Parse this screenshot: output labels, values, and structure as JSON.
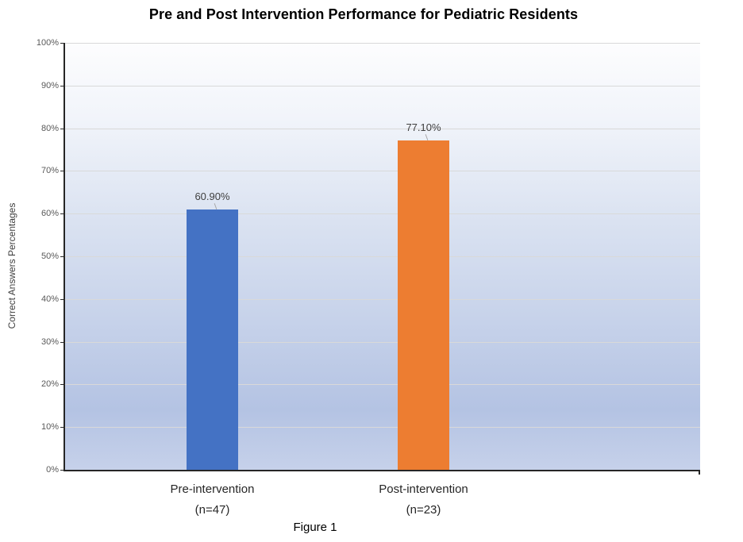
{
  "chart_data": {
    "type": "bar",
    "title": "Pre and Post Intervention Performance for Pediatric Residents",
    "xlabel": "",
    "ylabel": "Correct Answers Percentages",
    "ylim": [
      0,
      100
    ],
    "ytick_step": 10,
    "ytick_labels": [
      "0%",
      "10%",
      "20%",
      "30%",
      "40%",
      "50%",
      "60%",
      "70%",
      "80%",
      "90%",
      "100%"
    ],
    "grid": true,
    "legend": false,
    "categories": [
      {
        "label": "Pre-intervention",
        "sublabel": "(n=47)"
      },
      {
        "label": "Post-intervention",
        "sublabel": "(n=23)"
      }
    ],
    "values": [
      60.9,
      77.1
    ],
    "data_labels": [
      "60.90%",
      "77.10%"
    ],
    "bar_colors": [
      "#4472C4",
      "#ED7D31"
    ],
    "gridline_color": "#D9D9D9",
    "axis_color": "#262626",
    "tick_label_color": "#595959",
    "data_label_color": "#404040",
    "caption": "Figure 1"
  }
}
